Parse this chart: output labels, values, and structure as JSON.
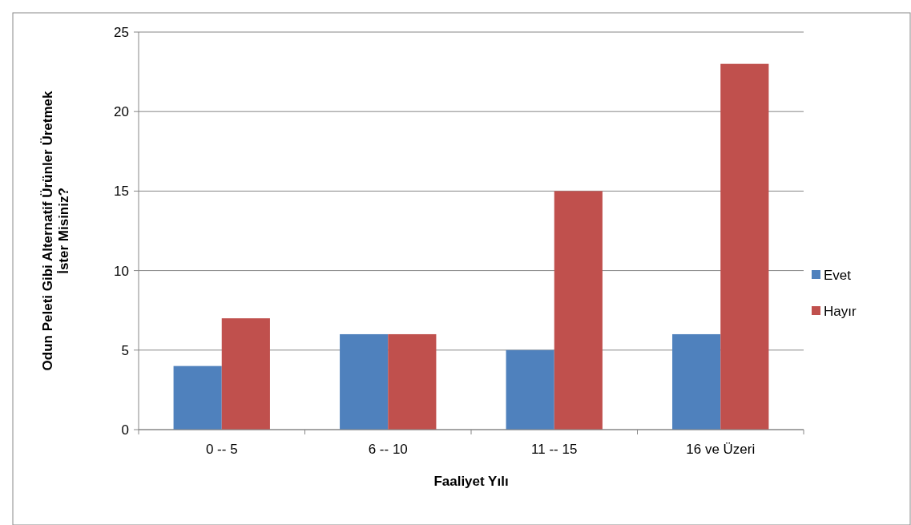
{
  "chart_data": {
    "type": "bar",
    "xlabel": "Faaliyet Yılı",
    "ylabel": "Odun Peleti Gibi Alternatif Ürünler Üretmek\nİster Misiniz?",
    "categories": [
      "0 -- 5",
      "6 -- 10",
      "11 -- 15",
      "16 ve Üzeri"
    ],
    "series": [
      {
        "name": "Evet",
        "color": "#4f81bd",
        "values": [
          4,
          6,
          5,
          6
        ]
      },
      {
        "name": "Hayır",
        "color": "#c0504d",
        "values": [
          7,
          6,
          15,
          23
        ]
      }
    ],
    "ylim": [
      0,
      25
    ],
    "yticks": [
      0,
      5,
      10,
      15,
      20,
      25
    ],
    "grid": "y",
    "legend": "right"
  }
}
